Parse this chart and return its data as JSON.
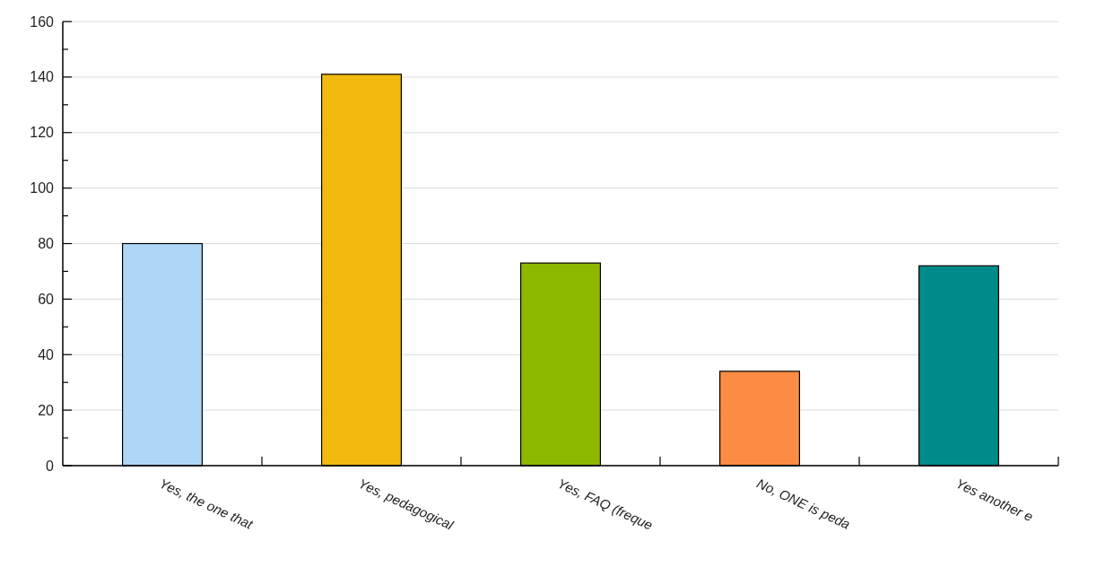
{
  "chart_data": {
    "type": "bar",
    "categories": [
      "Yes, the one that",
      "Yes, pedagogical",
      "Yes, FAQ (freque",
      "No, ONE is peda",
      "Yes another e"
    ],
    "values": [
      80,
      141,
      73,
      34,
      72
    ],
    "colors": [
      "#b0d6f5",
      "#f2b90f",
      "#8cb800",
      "#fc8c44",
      "#008b8b"
    ],
    "ylim": [
      0,
      160
    ],
    "yticks": [
      0,
      {
        "value": 10,
        "label": null
      },
      20,
      {
        "value": 30,
        "label": null
      },
      40,
      {
        "value": 50,
        "label": null
      },
      60,
      {
        "value": 70,
        "label": null
      },
      80,
      {
        "value": 90,
        "label": null
      },
      100,
      {
        "value": 110,
        "label": null
      },
      120,
      {
        "value": 130,
        "label": null
      },
      140,
      {
        "value": 150,
        "label": null
      },
      160
    ],
    "grid": "y"
  }
}
